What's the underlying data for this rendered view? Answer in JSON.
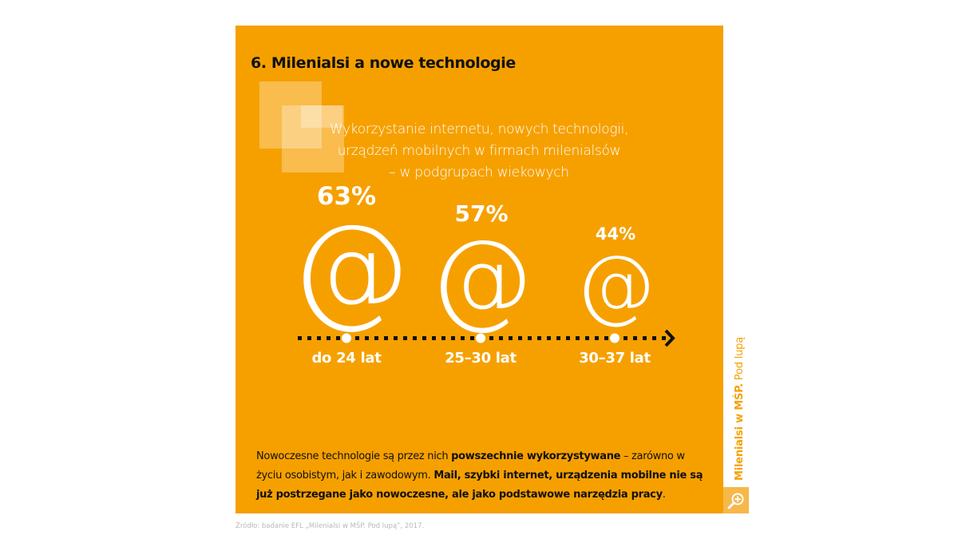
{
  "title": "6. Milenialsi a nowe technologie",
  "subtitle": [
    "Wykorzystanie internetu, nowych technologii,",
    "urządzeń mobilnych w firmach milenialsów",
    "– w podgrupach wiekowych"
  ],
  "groups": [
    {
      "percent": "63%",
      "symbol": "@",
      "age": "do 24 lat"
    },
    {
      "percent": "57%",
      "symbol": "@",
      "age": "25–30 lat"
    },
    {
      "percent": "44%",
      "symbol": "@",
      "age": "30–37 lat"
    }
  ],
  "body": {
    "p1": "Nowoczesne technologie są przez nich ",
    "b1": "powszechnie wykorzystywane",
    "p2": " – zarówno w życiu osobistym, jak i zawodowym. ",
    "b2": "Mail, szybki internet, urządzenia mobilne nie są już postrzegane jako nowoczesne, ale jako podstawowe narzędzia pracy",
    "p3": "."
  },
  "side": {
    "bold": "Milenialsi w MŚP.",
    "regular": " Pod lupą"
  },
  "source": "Źródło: badanie EFL „Milenialsi w MŚP. Pod lupą”, 2017.",
  "colors": {
    "accent": "#f6a000",
    "text": "#111111",
    "white": "#ffffff"
  },
  "icons": {
    "side": "magnifier-plus-icon",
    "timeline_end": "arrow-right-icon"
  }
}
